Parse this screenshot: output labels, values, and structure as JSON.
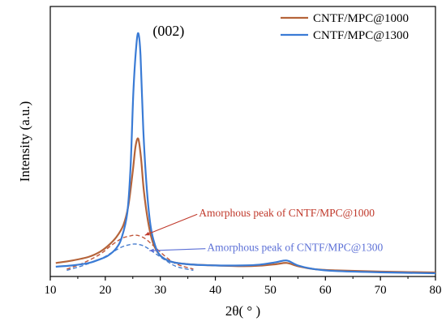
{
  "chart_data": {
    "type": "line",
    "title": "",
    "xlabel": "2θ( ° )",
    "ylabel": "Intensity (a.u.)",
    "xlim": [
      10,
      80
    ],
    "x_ticks": [
      10,
      20,
      30,
      40,
      50,
      60,
      70,
      80
    ],
    "y_ticks_shown": false,
    "y_units": "arbitrary (a.u.)",
    "grid": false,
    "legend": {
      "position": "top-right",
      "entries": [
        "CNTF/MPC@1000",
        "CNTF/MPC@1300"
      ]
    },
    "series": [
      {
        "name": "CNTF/MPC@1000",
        "color": "#b5643a",
        "x": [
          11,
          14,
          17,
          19,
          20.5,
          22,
          23.3,
          24.2,
          25,
          25.5,
          26,
          26.5,
          27,
          27.8,
          28.7,
          30,
          32,
          35,
          40,
          45,
          48,
          51,
          53,
          55,
          58,
          62,
          70,
          80
        ],
        "y": [
          0.055,
          0.065,
          0.08,
          0.1,
          0.125,
          0.16,
          0.21,
          0.29,
          0.43,
          0.53,
          0.56,
          0.48,
          0.35,
          0.22,
          0.135,
          0.085,
          0.06,
          0.05,
          0.045,
          0.042,
          0.044,
          0.05,
          0.055,
          0.042,
          0.03,
          0.025,
          0.02,
          0.016
        ]
      },
      {
        "name": "CNTF/MPC@1300",
        "color": "#3a7bd5",
        "x": [
          11,
          14,
          17,
          19,
          20.5,
          22,
          23,
          24,
          24.6,
          25.1,
          25.6,
          26,
          26.4,
          26.9,
          27.5,
          28.2,
          29,
          30,
          32,
          35,
          40,
          45,
          48,
          51,
          53,
          55,
          58,
          62,
          70,
          80
        ],
        "y": [
          0.04,
          0.045,
          0.055,
          0.07,
          0.085,
          0.115,
          0.16,
          0.26,
          0.45,
          0.75,
          0.93,
          0.99,
          0.9,
          0.6,
          0.37,
          0.21,
          0.13,
          0.085,
          0.06,
          0.05,
          0.045,
          0.045,
          0.048,
          0.058,
          0.065,
          0.045,
          0.03,
          0.022,
          0.017,
          0.013
        ]
      }
    ],
    "fits": [
      {
        "series": "CNTF/MPC@1000",
        "style": "dashed",
        "color": "#c0563a",
        "x": [
          13,
          16,
          19,
          21,
          23,
          24.5,
          25.5,
          26.5,
          27.5,
          29,
          31,
          33,
          36
        ],
        "y": [
          0.03,
          0.055,
          0.09,
          0.125,
          0.155,
          0.165,
          0.168,
          0.163,
          0.15,
          0.12,
          0.08,
          0.05,
          0.03
        ]
      },
      {
        "series": "CNTF/MPC@1300",
        "style": "dashed",
        "color": "#4a7fd0",
        "x": [
          13,
          16,
          19,
          21,
          23,
          24.5,
          25.5,
          26.5,
          27.5,
          29,
          31,
          33,
          36
        ],
        "y": [
          0.025,
          0.045,
          0.07,
          0.095,
          0.12,
          0.13,
          0.132,
          0.128,
          0.118,
          0.095,
          0.065,
          0.04,
          0.025
        ]
      }
    ],
    "annotations": [
      {
        "text": "(002)",
        "color": "#000000",
        "x": 31.5,
        "y": 0.98
      },
      {
        "text": "Amorphous peak of CNTF/MPC@1000",
        "color": "#c0392b",
        "x": 37,
        "y": 0.26,
        "arrow_to": [
          27.2,
          0.168
        ]
      },
      {
        "text": "Amorphous peak of CNTF/MPC@1300",
        "color": "#5b6fd6",
        "x": 38.5,
        "y": 0.12,
        "arrow_to": [
          28,
          0.105
        ]
      }
    ]
  }
}
